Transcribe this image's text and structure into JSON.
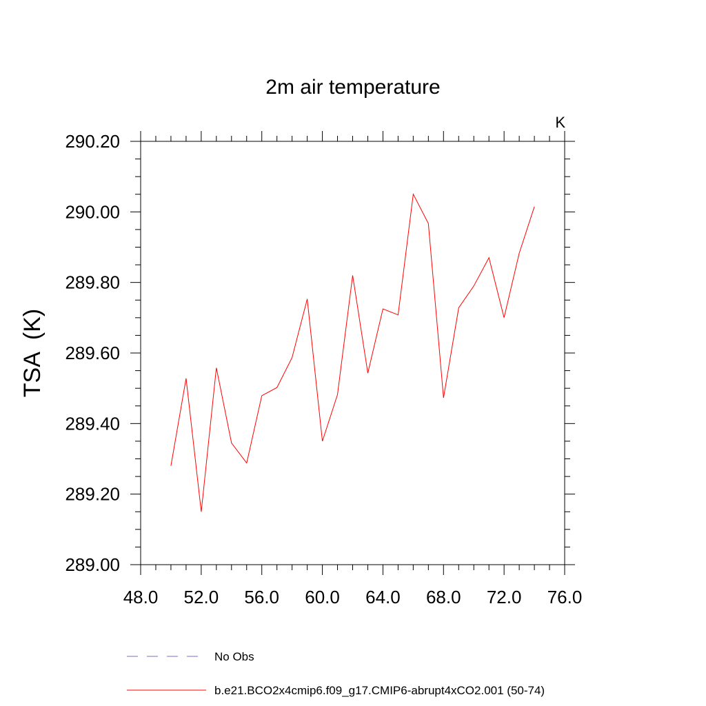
{
  "chart_data": {
    "type": "line",
    "title": "2m air temperature",
    "units_label": "K",
    "ylabel": "TSA  (K)",
    "xlabel": "",
    "xlim": [
      48,
      76
    ],
    "ylim": [
      289.0,
      290.2
    ],
    "x_ticks": [
      "48.0",
      "52.0",
      "56.0",
      "60.0",
      "64.0",
      "68.0",
      "72.0",
      "76.0"
    ],
    "x_tick_values": [
      48,
      52,
      56,
      60,
      64,
      68,
      72,
      76
    ],
    "y_ticks": [
      "289.00",
      "289.20",
      "289.40",
      "289.60",
      "289.80",
      "290.00",
      "290.20"
    ],
    "y_tick_values": [
      289.0,
      289.2,
      289.4,
      289.6,
      289.8,
      290.0,
      290.2
    ],
    "grid": false,
    "legend_position": "bottom",
    "series": [
      {
        "name": "No Obs",
        "color": "#7a6fc4",
        "dash": "dashed",
        "x": [],
        "values": []
      },
      {
        "name": "b.e21.BCO2x4cmip6.f09_g17.CMIP6-abrupt4xCO2.001 (50-74)",
        "color": "#ff0000",
        "dash": "solid",
        "x": [
          50,
          51,
          52,
          53,
          54,
          55,
          56,
          57,
          58,
          59,
          60,
          61,
          62,
          63,
          64,
          65,
          66,
          67,
          68,
          69,
          70,
          71,
          72,
          73,
          74
        ],
        "values": [
          289.28,
          289.528,
          289.15,
          289.558,
          289.345,
          289.288,
          289.479,
          289.502,
          289.587,
          289.753,
          289.35,
          289.482,
          289.82,
          289.543,
          289.725,
          289.708,
          290.05,
          289.967,
          289.473,
          289.728,
          289.79,
          289.87,
          289.7,
          289.883,
          290.015
        ]
      }
    ]
  }
}
